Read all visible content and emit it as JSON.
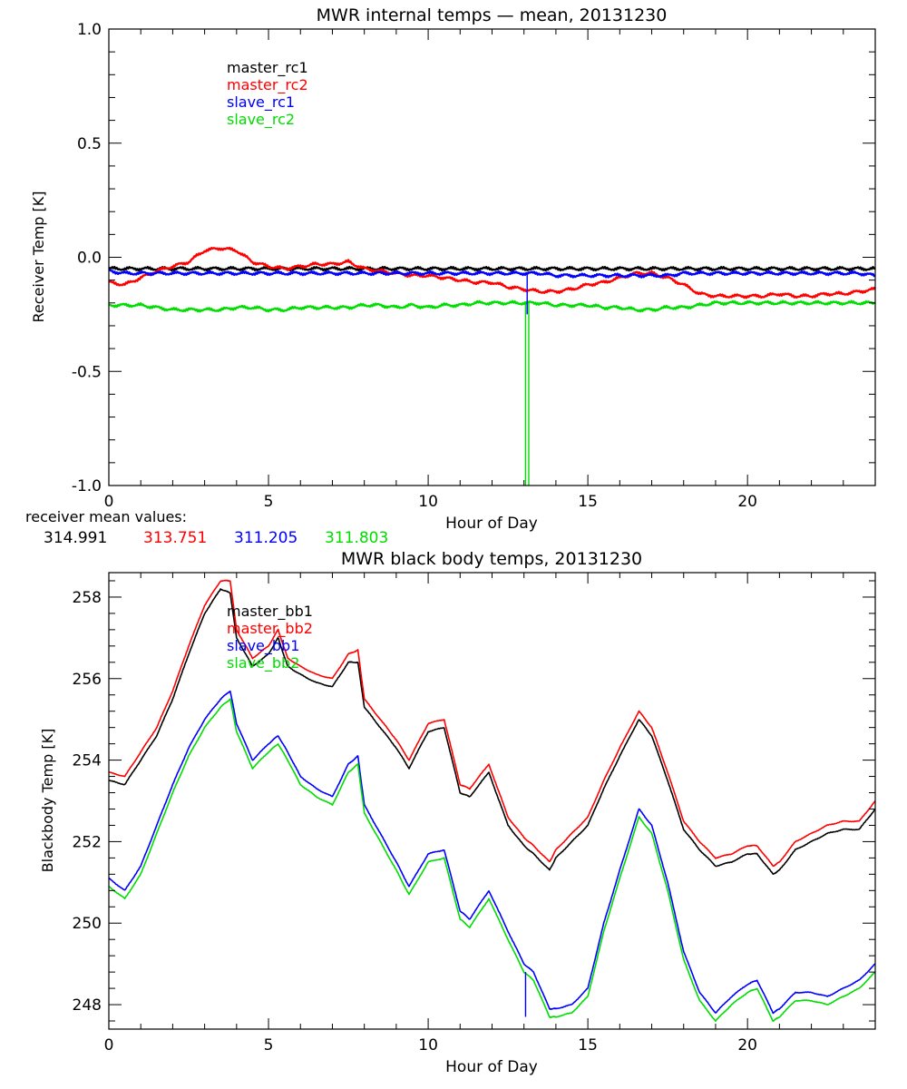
{
  "chart_data": [
    {
      "type": "line",
      "title": "MWR internal temps — mean, 20131230",
      "xlabel": "Hour of Day",
      "ylabel": "Receiver Temp [K]",
      "xlim": [
        0,
        24
      ],
      "ylim": [
        -1.0,
        1.0
      ],
      "xticks": [
        0,
        5,
        10,
        15,
        20
      ],
      "yticks": [
        -1.0,
        -0.5,
        0.0,
        0.5,
        1.0
      ],
      "ytick_labels": [
        "-1.0",
        "-0.5",
        "0.0",
        "0.5",
        "1.0"
      ],
      "grid": false,
      "legend": "top-left",
      "x": [
        0,
        0.5,
        1,
        1.5,
        2,
        2.5,
        3,
        3.5,
        4,
        4.5,
        5,
        5.5,
        6,
        6.5,
        7,
        7.5,
        8,
        8.5,
        9,
        9.5,
        10,
        10.5,
        11,
        11.5,
        12,
        12.5,
        13,
        13.5,
        14,
        14.5,
        15,
        15.5,
        16,
        16.5,
        17,
        17.5,
        18,
        18.5,
        19,
        19.5,
        20,
        20.5,
        21,
        21.5,
        22,
        22.5,
        23,
        23.5,
        24
      ],
      "series": [
        {
          "name": "master_rc1",
          "color": "#000000",
          "values": [
            -0.05,
            -0.05,
            -0.05,
            -0.05,
            -0.05,
            -0.05,
            -0.05,
            -0.05,
            -0.05,
            -0.05,
            -0.05,
            -0.05,
            -0.05,
            -0.05,
            -0.05,
            -0.05,
            -0.05,
            -0.05,
            -0.05,
            -0.05,
            -0.05,
            -0.05,
            -0.05,
            -0.05,
            -0.05,
            -0.05,
            -0.05,
            -0.05,
            -0.05,
            -0.05,
            -0.05,
            -0.05,
            -0.05,
            -0.05,
            -0.05,
            -0.05,
            -0.05,
            -0.05,
            -0.05,
            -0.05,
            -0.05,
            -0.05,
            -0.05,
            -0.05,
            -0.05,
            -0.05,
            -0.05,
            -0.05,
            -0.05
          ]
        },
        {
          "name": "master_rc2",
          "color": "#ff0000",
          "values": [
            -0.11,
            -0.12,
            -0.09,
            -0.06,
            -0.04,
            -0.02,
            0.03,
            0.04,
            0.03,
            -0.02,
            -0.04,
            -0.05,
            -0.04,
            -0.03,
            -0.03,
            -0.02,
            -0.05,
            -0.06,
            -0.07,
            -0.08,
            -0.08,
            -0.09,
            -0.1,
            -0.11,
            -0.11,
            -0.13,
            -0.14,
            -0.15,
            -0.15,
            -0.14,
            -0.12,
            -0.11,
            -0.09,
            -0.07,
            -0.07,
            -0.09,
            -0.12,
            -0.16,
            -0.17,
            -0.17,
            -0.17,
            -0.17,
            -0.16,
            -0.17,
            -0.17,
            -0.16,
            -0.16,
            -0.15,
            -0.14
          ]
        },
        {
          "name": "slave_rc1",
          "color": "#0000ff",
          "values": [
            -0.06,
            -0.07,
            -0.07,
            -0.07,
            -0.07,
            -0.07,
            -0.07,
            -0.07,
            -0.07,
            -0.07,
            -0.07,
            -0.07,
            -0.07,
            -0.07,
            -0.07,
            -0.07,
            -0.07,
            -0.07,
            -0.07,
            -0.07,
            -0.07,
            -0.07,
            -0.07,
            -0.07,
            -0.07,
            -0.07,
            -0.07,
            -0.07,
            -0.08,
            -0.08,
            -0.08,
            -0.08,
            -0.08,
            -0.08,
            -0.08,
            -0.08,
            -0.07,
            -0.07,
            -0.07,
            -0.07,
            -0.07,
            -0.07,
            -0.07,
            -0.07,
            -0.07,
            -0.07,
            -0.07,
            -0.07,
            -0.08
          ]
        },
        {
          "name": "slave_rc2",
          "color": "#00dd00",
          "values": [
            -0.21,
            -0.21,
            -0.21,
            -0.22,
            -0.23,
            -0.23,
            -0.23,
            -0.23,
            -0.22,
            -0.22,
            -0.23,
            -0.23,
            -0.22,
            -0.22,
            -0.22,
            -0.22,
            -0.21,
            -0.21,
            -0.22,
            -0.21,
            -0.22,
            -0.21,
            -0.21,
            -0.2,
            -0.2,
            -0.2,
            -0.2,
            -0.2,
            -0.21,
            -0.21,
            -0.21,
            -0.22,
            -0.22,
            -0.23,
            -0.23,
            -0.22,
            -0.22,
            -0.21,
            -0.2,
            -0.2,
            -0.2,
            -0.2,
            -0.2,
            -0.2,
            -0.2,
            -0.2,
            -0.2,
            -0.2,
            -0.2
          ]
        }
      ],
      "spikes": [
        {
          "series": "slave_rc2",
          "x": 13.05,
          "from": -0.2,
          "to": -1.0
        },
        {
          "series": "slave_rc2",
          "x": 13.15,
          "from": -0.2,
          "to": -1.0
        },
        {
          "series": "slave_rc1",
          "x": 13.1,
          "from": -0.07,
          "to": -0.25
        }
      ],
      "mean_values_label": "receiver mean values:",
      "mean_values": [
        {
          "value": "314.991",
          "color": "#000000"
        },
        {
          "value": "313.751",
          "color": "#ff0000"
        },
        {
          "value": "311.205",
          "color": "#0000ff"
        },
        {
          "value": "311.803",
          "color": "#00dd00"
        }
      ]
    },
    {
      "type": "line",
      "title": "MWR black body temps, 20131230",
      "xlabel": "Hour of Day",
      "ylabel": "Blackbody Temp [K]",
      "xlim": [
        0,
        24
      ],
      "ylim": [
        247.4,
        258.6
      ],
      "xticks": [
        0,
        5,
        10,
        15,
        20
      ],
      "yticks": [
        248,
        250,
        252,
        254,
        256,
        258
      ],
      "ytick_labels": [
        "248",
        "250",
        "252",
        "254",
        "256",
        "258"
      ],
      "grid": false,
      "legend": "top-left",
      "x": [
        0,
        0.5,
        1,
        1.5,
        2,
        2.5,
        3,
        3.5,
        3.8,
        4,
        4.5,
        5,
        5.3,
        5.6,
        6,
        6.5,
        7,
        7.5,
        7.8,
        8,
        8.5,
        9,
        9.4,
        10,
        10.5,
        11,
        11.3,
        11.9,
        12.5,
        13,
        13.3,
        13.8,
        14,
        14.5,
        15,
        15.5,
        16,
        16.6,
        17,
        17.5,
        18,
        18.5,
        19,
        19.5,
        20,
        20.3,
        20.8,
        21,
        21.5,
        22,
        22.5,
        23,
        23.5,
        24
      ],
      "series": [
        {
          "name": "master_bb1",
          "color": "#000000",
          "values": [
            253.5,
            253.4,
            254.0,
            254.6,
            255.5,
            256.6,
            257.6,
            258.2,
            258.1,
            257.0,
            256.3,
            256.6,
            257.0,
            256.3,
            256.1,
            255.9,
            255.8,
            256.4,
            256.4,
            255.3,
            254.8,
            254.3,
            253.8,
            254.7,
            254.8,
            253.2,
            253.1,
            253.7,
            252.4,
            251.9,
            251.7,
            251.3,
            251.6,
            252.0,
            252.4,
            253.3,
            254.1,
            255.0,
            254.6,
            253.5,
            252.3,
            251.8,
            251.4,
            251.5,
            251.7,
            251.7,
            251.2,
            251.3,
            251.8,
            252.0,
            252.2,
            252.3,
            252.3,
            252.8
          ]
        },
        {
          "name": "master_bb2",
          "color": "#ff0000",
          "values": [
            253.7,
            253.6,
            254.2,
            254.8,
            255.7,
            256.8,
            257.8,
            258.4,
            258.4,
            257.2,
            256.5,
            256.8,
            257.2,
            256.5,
            256.3,
            256.1,
            256.0,
            256.6,
            256.7,
            255.5,
            255.0,
            254.5,
            254.0,
            254.9,
            255.0,
            253.4,
            253.3,
            253.9,
            252.6,
            252.1,
            251.9,
            251.5,
            251.8,
            252.2,
            252.6,
            253.5,
            254.3,
            255.2,
            254.8,
            253.7,
            252.5,
            252.0,
            251.6,
            251.7,
            251.9,
            251.9,
            251.4,
            251.5,
            252.0,
            252.2,
            252.4,
            252.5,
            252.5,
            253.0
          ]
        },
        {
          "name": "slave_bb1",
          "color": "#0000ff",
          "values": [
            251.1,
            250.8,
            251.4,
            252.4,
            253.4,
            254.3,
            255.0,
            255.5,
            255.7,
            254.9,
            254.0,
            254.4,
            254.6,
            254.2,
            253.6,
            253.3,
            253.1,
            253.9,
            254.1,
            252.9,
            252.2,
            251.5,
            250.9,
            251.7,
            251.8,
            250.3,
            250.1,
            250.8,
            249.8,
            249.0,
            248.8,
            247.9,
            247.9,
            248.0,
            248.4,
            250.0,
            251.3,
            252.8,
            252.4,
            251.0,
            249.3,
            248.3,
            247.8,
            248.2,
            248.5,
            248.6,
            247.8,
            247.9,
            248.3,
            248.3,
            248.2,
            248.4,
            248.6,
            249.0
          ]
        },
        {
          "name": "slave_bb2",
          "color": "#00dd00",
          "values": [
            250.9,
            250.6,
            251.2,
            252.2,
            253.2,
            254.1,
            254.8,
            255.3,
            255.5,
            254.7,
            253.8,
            254.2,
            254.4,
            254.0,
            253.4,
            253.1,
            252.9,
            253.7,
            253.9,
            252.7,
            252.0,
            251.3,
            250.7,
            251.5,
            251.6,
            250.1,
            249.9,
            250.6,
            249.6,
            248.8,
            248.6,
            247.7,
            247.7,
            247.8,
            248.2,
            249.8,
            251.1,
            252.6,
            252.2,
            250.8,
            249.1,
            248.1,
            247.6,
            248.0,
            248.3,
            248.4,
            247.6,
            247.7,
            248.1,
            248.1,
            248.0,
            248.2,
            248.4,
            248.8
          ]
        }
      ],
      "spikes": [
        {
          "series": "slave_bb1",
          "x": 13.05,
          "from": 248.8,
          "to": 247.7
        }
      ]
    }
  ]
}
